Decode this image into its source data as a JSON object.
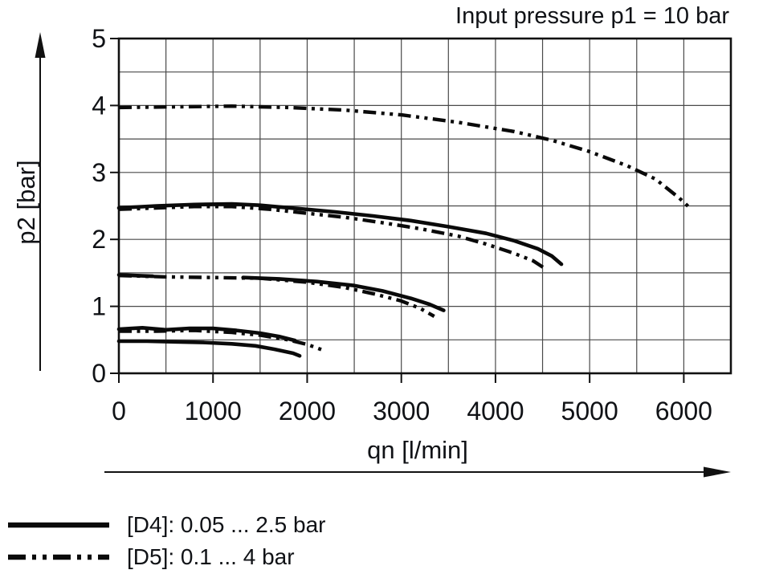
{
  "chart_data": {
    "type": "line",
    "title": "Input pressure p1 = 10 bar",
    "xlabel": "qn [l/min]",
    "ylabel": "p2 [bar]",
    "xlim": [
      0,
      6500
    ],
    "ylim": [
      0,
      5
    ],
    "x_ticks": [
      0,
      1000,
      2000,
      3000,
      4000,
      5000,
      6000
    ],
    "y_ticks": [
      0,
      1,
      2,
      3,
      4,
      5
    ],
    "grid": {
      "on": true,
      "x_step": 500,
      "y_step": 0.5
    },
    "legend_position": "below-left",
    "series": [
      {
        "name": "d5-curve-4.0-bar",
        "group": "D5",
        "style": "dashdotdot",
        "points": [
          [
            0,
            3.97
          ],
          [
            600,
            3.98
          ],
          [
            1200,
            3.99
          ],
          [
            1800,
            3.97
          ],
          [
            2400,
            3.93
          ],
          [
            3000,
            3.86
          ],
          [
            3600,
            3.75
          ],
          [
            4200,
            3.61
          ],
          [
            4600,
            3.48
          ],
          [
            5000,
            3.31
          ],
          [
            5400,
            3.1
          ],
          [
            5700,
            2.9
          ],
          [
            5950,
            2.62
          ],
          [
            6080,
            2.45
          ]
        ]
      },
      {
        "name": "d4-curve-2.5-bar",
        "group": "D4",
        "style": "solid",
        "points": [
          [
            0,
            2.47
          ],
          [
            400,
            2.5
          ],
          [
            800,
            2.52
          ],
          [
            1200,
            2.53
          ],
          [
            1500,
            2.51
          ],
          [
            1900,
            2.46
          ],
          [
            2300,
            2.41
          ],
          [
            2700,
            2.35
          ],
          [
            3100,
            2.28
          ],
          [
            3500,
            2.19
          ],
          [
            3900,
            2.09
          ],
          [
            4200,
            1.98
          ],
          [
            4450,
            1.86
          ],
          [
            4600,
            1.75
          ],
          [
            4700,
            1.63
          ]
        ]
      },
      {
        "name": "d5-curve-2.45-bar",
        "group": "D5",
        "style": "dashdotdot",
        "points": [
          [
            0,
            2.45
          ],
          [
            400,
            2.47
          ],
          [
            800,
            2.49
          ],
          [
            1200,
            2.49
          ],
          [
            1600,
            2.45
          ],
          [
            2000,
            2.39
          ],
          [
            2400,
            2.33
          ],
          [
            2800,
            2.25
          ],
          [
            3200,
            2.16
          ],
          [
            3600,
            2.05
          ],
          [
            3900,
            1.93
          ],
          [
            4200,
            1.79
          ],
          [
            4400,
            1.68
          ],
          [
            4520,
            1.57
          ]
        ]
      },
      {
        "name": "d4-curve-1.45-bar-start",
        "group": "D4",
        "style": "solid",
        "points": [
          [
            0,
            1.47
          ],
          [
            360,
            1.45
          ]
        ]
      },
      {
        "name": "d5-curve-1.45-bar",
        "group": "D5",
        "style": "dashdotdot",
        "points": [
          [
            0,
            1.46
          ],
          [
            500,
            1.44
          ],
          [
            1000,
            1.43
          ],
          [
            1500,
            1.42
          ],
          [
            2000,
            1.36
          ],
          [
            2400,
            1.28
          ],
          [
            2700,
            1.19
          ],
          [
            3000,
            1.08
          ],
          [
            3200,
            0.97
          ],
          [
            3350,
            0.85
          ]
        ]
      },
      {
        "name": "d4-curve-1.45-bar",
        "group": "D4",
        "style": "solid",
        "points": [
          [
            1320,
            1.43
          ],
          [
            1700,
            1.41
          ],
          [
            2100,
            1.37
          ],
          [
            2500,
            1.31
          ],
          [
            2800,
            1.23
          ],
          [
            3100,
            1.12
          ],
          [
            3300,
            1.03
          ],
          [
            3450,
            0.94
          ]
        ]
      },
      {
        "name": "d4-curve-0.65-bar",
        "group": "D4",
        "style": "solid",
        "points": [
          [
            0,
            0.66
          ],
          [
            250,
            0.68
          ],
          [
            500,
            0.65
          ],
          [
            750,
            0.67
          ],
          [
            1000,
            0.67
          ],
          [
            1250,
            0.64
          ],
          [
            1500,
            0.6
          ],
          [
            1700,
            0.55
          ],
          [
            1870,
            0.49
          ]
        ]
      },
      {
        "name": "d5-curve-0.6-bar",
        "group": "D5",
        "style": "dashdotdot",
        "points": [
          [
            0,
            0.63
          ],
          [
            400,
            0.63
          ],
          [
            800,
            0.64
          ],
          [
            1200,
            0.61
          ],
          [
            1500,
            0.57
          ],
          [
            1800,
            0.5
          ],
          [
            2000,
            0.43
          ],
          [
            2160,
            0.35
          ]
        ]
      },
      {
        "name": "d4-curve-0.45-bar",
        "group": "D4",
        "style": "solid",
        "points": [
          [
            0,
            0.48
          ],
          [
            300,
            0.48
          ],
          [
            600,
            0.47
          ],
          [
            900,
            0.46
          ],
          [
            1200,
            0.44
          ],
          [
            1450,
            0.41
          ],
          [
            1650,
            0.36
          ],
          [
            1850,
            0.3
          ],
          [
            1920,
            0.26
          ]
        ]
      }
    ]
  },
  "legend": [
    {
      "style": "solid",
      "label": "[D4]: 0.05 ... 2.5 bar"
    },
    {
      "style": "dashdotdot",
      "label": "[D5]: 0.1 ... 4 bar"
    }
  ],
  "colors": {
    "line": "#0a0a0a",
    "grid": "#4a4a4a",
    "text": "#101216",
    "background": "#ffffff"
  }
}
